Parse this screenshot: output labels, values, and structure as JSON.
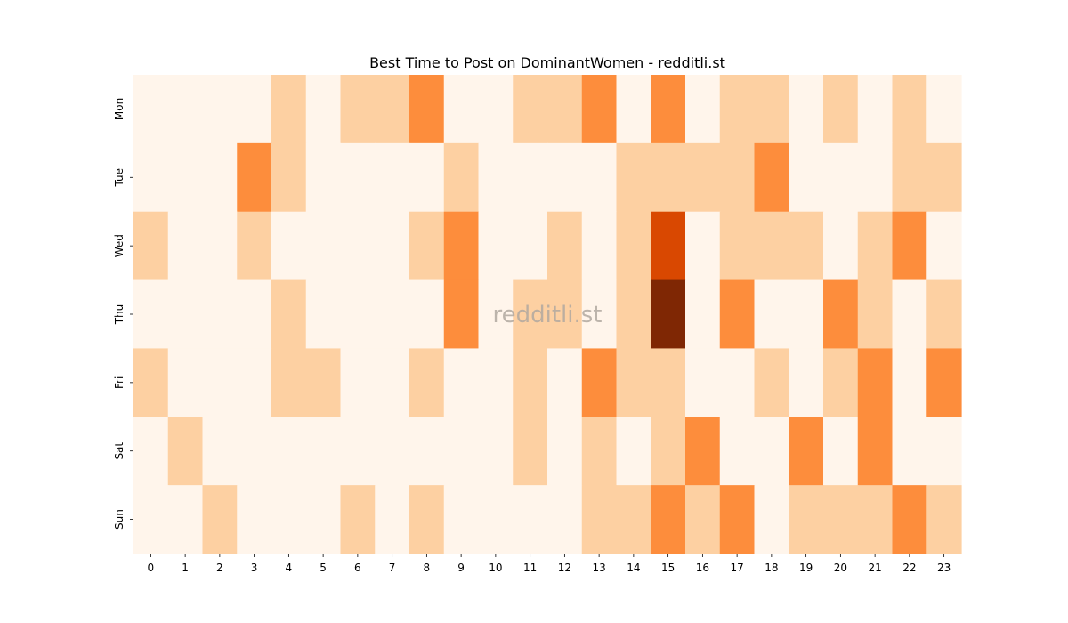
{
  "chart_data": {
    "type": "heatmap",
    "title": "Best Time to Post on DominantWomen - redditli.st",
    "watermark": "redditli.st",
    "xlabel": "",
    "ylabel": "",
    "x": [
      "0",
      "1",
      "2",
      "3",
      "4",
      "5",
      "6",
      "7",
      "8",
      "9",
      "10",
      "11",
      "12",
      "13",
      "14",
      "15",
      "16",
      "17",
      "18",
      "19",
      "20",
      "21",
      "22",
      "23"
    ],
    "y": [
      "Mon",
      "Tue",
      "Wed",
      "Thu",
      "Fri",
      "Sat",
      "Sun"
    ],
    "values": [
      [
        0,
        0,
        0,
        0,
        1,
        0,
        1,
        1,
        2,
        0,
        0,
        1,
        1,
        2,
        0,
        2,
        0,
        1,
        1,
        0,
        1,
        0,
        1,
        0
      ],
      [
        0,
        0,
        0,
        2,
        1,
        0,
        0,
        0,
        0,
        1,
        0,
        0,
        0,
        0,
        1,
        1,
        1,
        1,
        2,
        0,
        0,
        0,
        1,
        1
      ],
      [
        1,
        0,
        0,
        1,
        0,
        0,
        0,
        0,
        1,
        2,
        0,
        0,
        1,
        0,
        1,
        3,
        0,
        1,
        1,
        1,
        0,
        1,
        2,
        0
      ],
      [
        0,
        0,
        0,
        0,
        1,
        0,
        0,
        0,
        0,
        2,
        0,
        1,
        1,
        0,
        1,
        4,
        0,
        2,
        0,
        0,
        2,
        1,
        0,
        1
      ],
      [
        1,
        0,
        0,
        0,
        1,
        1,
        0,
        0,
        1,
        0,
        0,
        1,
        0,
        2,
        1,
        1,
        0,
        0,
        1,
        0,
        1,
        2,
        0,
        2
      ],
      [
        0,
        1,
        0,
        0,
        0,
        0,
        0,
        0,
        0,
        0,
        0,
        1,
        0,
        1,
        0,
        1,
        2,
        0,
        0,
        2,
        0,
        2,
        0,
        0
      ],
      [
        0,
        0,
        1,
        0,
        0,
        0,
        1,
        0,
        1,
        0,
        0,
        0,
        0,
        1,
        1,
        2,
        1,
        2,
        0,
        1,
        1,
        1,
        2,
        1
      ]
    ],
    "vmin": 0,
    "vmax": 4,
    "colors": [
      "#fff5eb",
      "#fdd0a2",
      "#fd8d3c",
      "#d94801",
      "#7f2704"
    ],
    "legend": "none",
    "grid": false
  }
}
